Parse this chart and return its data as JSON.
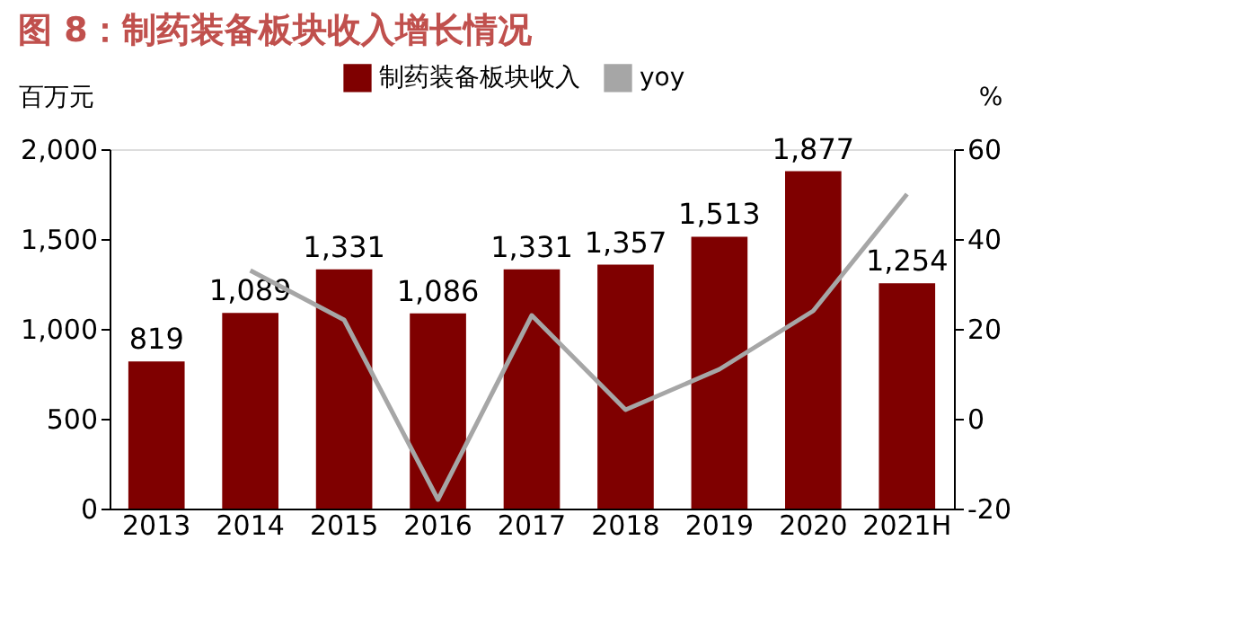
{
  "chart_data": {
    "type": "bar",
    "title": "图 8：制药装备板块收入增长情况",
    "categories": [
      "2013",
      "2014",
      "2015",
      "2016",
      "2017",
      "2018",
      "2019",
      "2020",
      "2021H"
    ],
    "ylabel": "百万元",
    "y2label": "%",
    "series": [
      {
        "name": "制药装备板块收入",
        "color": "#7f0000",
        "values": [
          819,
          1089,
          1331,
          1086,
          1331,
          1357,
          1513,
          1877,
          1254
        ],
        "value_labels": [
          "819",
          "1,089",
          "1,331",
          "1,086",
          "1,331",
          "1,357",
          "1,513",
          "1,877",
          "1,254"
        ]
      },
      {
        "name": "yoy",
        "type": "line",
        "axis": "y2",
        "color": "#a6a6a6",
        "values": [
          null,
          33,
          22,
          -18,
          23,
          2,
          11,
          24,
          50
        ]
      }
    ],
    "ylim": [
      0,
      2000
    ],
    "yticks": [
      0,
      500,
      {
        "value": 1000,
        "label": "1,000"
      },
      {
        "value": 1500,
        "label": "1,500"
      },
      {
        "value": 2000,
        "label": "2,000"
      }
    ],
    "y2lim": [
      -20,
      60
    ],
    "y2ticks": [
      -20,
      0,
      20,
      40,
      60
    ],
    "legend": "top",
    "grid": false
  }
}
